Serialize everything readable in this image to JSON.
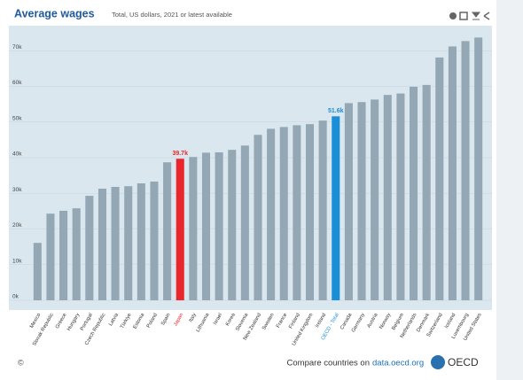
{
  "chart_data": {
    "type": "bar",
    "title": "Average wages",
    "subtitle": "Total, US dollars, 2021 or latest available",
    "categories": [
      "Mexico",
      "Slovak Republic",
      "Greece",
      "Hungary",
      "Portugal",
      "Czech Republic",
      "Latvia",
      "Türkiye",
      "Estonia",
      "Poland",
      "Spain",
      "Japan",
      "Italy",
      "Lithuania",
      "Israel",
      "Korea",
      "Slovenia",
      "New Zealand",
      "Sweden",
      "France",
      "Finland",
      "United Kingdom",
      "Ireland",
      "OECD - Total",
      "Canada",
      "Germany",
      "Austria",
      "Norway",
      "Belgium",
      "Netherlands",
      "Denmark",
      "Switzerland",
      "Iceland",
      "Luxembourg",
      "United States"
    ],
    "values": [
      16.1,
      24.3,
      25.1,
      25.8,
      29.3,
      31.3,
      31.8,
      32.0,
      32.8,
      33.3,
      38.7,
      39.7,
      40.2,
      41.4,
      41.5,
      42.2,
      43.4,
      46.4,
      48.1,
      48.6,
      49.1,
      49.4,
      50.4,
      51.6,
      55.3,
      55.6,
      56.3,
      57.6,
      58.0,
      59.9,
      60.4,
      68.1,
      71.2,
      72.7,
      73.7
    ],
    "value_labels": [
      null,
      null,
      null,
      null,
      null,
      null,
      null,
      null,
      null,
      null,
      null,
      "39.7k",
      null,
      null,
      null,
      null,
      null,
      null,
      null,
      null,
      null,
      null,
      null,
      "51.6k",
      null,
      null,
      null,
      null,
      null,
      null,
      null,
      null,
      null,
      null,
      null
    ],
    "color": "#93a8b4",
    "highlights": {
      "Japan": "#e8262b",
      "OECD - Total": "#1a8fd8"
    },
    "ylim": [
      0,
      80
    ],
    "yticks": [
      {
        "value": 0,
        "label": "0k"
      },
      {
        "value": 10,
        "label": "10k"
      },
      {
        "value": 20,
        "label": "20k"
      },
      {
        "value": 30,
        "label": "30k"
      },
      {
        "value": 40,
        "label": "40k"
      },
      {
        "value": 50,
        "label": "50k"
      },
      {
        "value": 60,
        "label": "60k"
      },
      {
        "value": 70,
        "label": "70k"
      }
    ],
    "grid": true
  },
  "footer": {
    "copyright": "©",
    "text": "Compare countries on",
    "link": "data.oecd.org",
    "logo": "OECD"
  }
}
